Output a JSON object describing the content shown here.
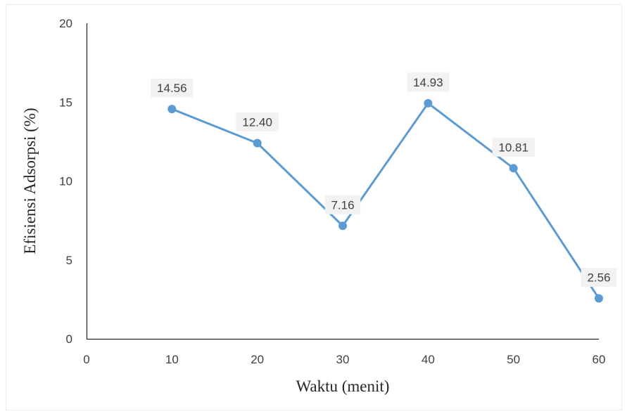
{
  "chart_data": {
    "type": "line",
    "title": "",
    "xlabel": "Waktu (menit)",
    "ylabel": "Efisiensi Adsorpsi (%)",
    "xlim": [
      0,
      60
    ],
    "ylim": [
      0,
      20
    ],
    "x_ticks": [
      "0",
      "10",
      "20",
      "30",
      "40",
      "50",
      "60"
    ],
    "y_ticks": [
      "0",
      "5",
      "10",
      "15",
      "20"
    ],
    "grid": false,
    "legend": "none",
    "series": [
      {
        "color": "#5b9bd5",
        "x": [
          10,
          20,
          30,
          40,
          50,
          60
        ],
        "y": [
          14.56,
          12.4,
          7.16,
          14.93,
          10.81,
          2.56
        ],
        "labels": [
          "14.56",
          "12.40",
          "7.16",
          "14.93",
          "10.81",
          "2.56"
        ]
      }
    ]
  }
}
